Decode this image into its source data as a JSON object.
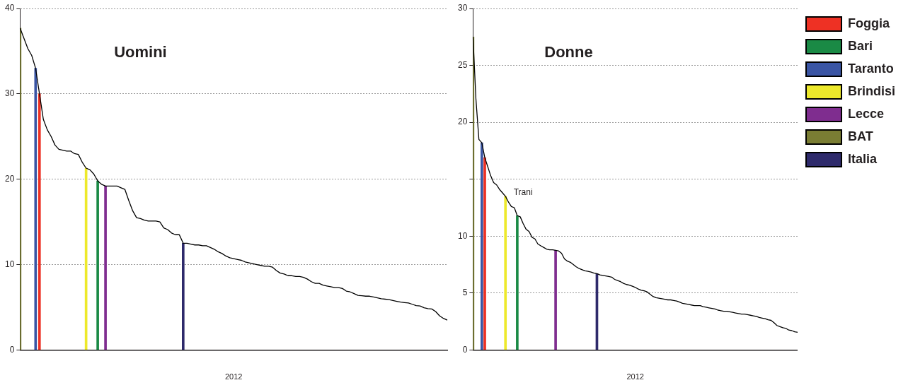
{
  "chart_data": [
    {
      "type": "line",
      "title": "Uomini",
      "xlabel": "2012",
      "marker": "none",
      "grid": "y",
      "ylim": [
        0,
        40
      ],
      "yticks": [
        0,
        10,
        20,
        30,
        40
      ],
      "categories": [
        null,
        null,
        null,
        null,
        null,
        null,
        null,
        null,
        null,
        null,
        null,
        null,
        null,
        null,
        null,
        null,
        null,
        null,
        null,
        null,
        null,
        null,
        null,
        null,
        null,
        null,
        null,
        null,
        null,
        null,
        null,
        null,
        null,
        null,
        null,
        null,
        null,
        null,
        null,
        null,
        null,
        null,
        null,
        null,
        null,
        null,
        null,
        null,
        null,
        null,
        null,
        null,
        null,
        null,
        null,
        null,
        null,
        null,
        null,
        null,
        null,
        null,
        null,
        null,
        null,
        null,
        null,
        null,
        null,
        null,
        null,
        null,
        null,
        null,
        null,
        null,
        null,
        null,
        null,
        null,
        null,
        null,
        null,
        null,
        null,
        null,
        null,
        null,
        null,
        null,
        null,
        null,
        null,
        null,
        null,
        null,
        null,
        null,
        null,
        null,
        null,
        null,
        null,
        null,
        null,
        null,
        null,
        null,
        null,
        null,
        null
      ],
      "series": [
        {
          "color": "#000000",
          "values": [
            37.7,
            36.5,
            35.3,
            34.5,
            33.0,
            30.0,
            27.0,
            25.8,
            25.0,
            24.0,
            23.5,
            23.4,
            23.3,
            23.3,
            23.0,
            22.9,
            22.0,
            21.3,
            21.1,
            20.6,
            19.8,
            19.4,
            19.2,
            19.2,
            19.2,
            19.2,
            19.0,
            18.8,
            17.5,
            16.3,
            15.5,
            15.4,
            15.2,
            15.1,
            15.1,
            15.1,
            15.0,
            14.3,
            14.1,
            13.7,
            13.5,
            13.5,
            12.5,
            12.5,
            12.4,
            12.3,
            12.3,
            12.2,
            12.2,
            12.0,
            11.8,
            11.5,
            11.3,
            11.0,
            10.8,
            10.7,
            10.6,
            10.5,
            10.3,
            10.2,
            10.1,
            10.0,
            9.9,
            9.8,
            9.8,
            9.7,
            9.3,
            9.0,
            8.9,
            8.7,
            8.7,
            8.6,
            8.6,
            8.5,
            8.3,
            8.0,
            7.8,
            7.8,
            7.6,
            7.5,
            7.4,
            7.3,
            7.3,
            7.2,
            6.9,
            6.8,
            6.6,
            6.4,
            6.35,
            6.3,
            6.3,
            6.2,
            6.1,
            6.0,
            5.95,
            5.9,
            5.8,
            5.7,
            5.6,
            5.55,
            5.5,
            5.35,
            5.2,
            5.15,
            4.95,
            4.85,
            4.8,
            4.5,
            4.0,
            3.7,
            3.5
          ]
        },
        {
          "type": "bar",
          "color": "#ee3124",
          "values": [
            null,
            null,
            null,
            null,
            null,
            30.0,
            null,
            null,
            null,
            null,
            null,
            null,
            null,
            null,
            null,
            null,
            null,
            null,
            null,
            null,
            null,
            null,
            null,
            null,
            null,
            null,
            null,
            null,
            null,
            null,
            null,
            null,
            null,
            null,
            null,
            null,
            null,
            null,
            null,
            null,
            null,
            null,
            null,
            null,
            null,
            null,
            null,
            null,
            null,
            null,
            null,
            null,
            null,
            null,
            null,
            null,
            null,
            null,
            null,
            null,
            null,
            null,
            null,
            null,
            null,
            null,
            null,
            null,
            null,
            null,
            null,
            null,
            null,
            null,
            null,
            null,
            null,
            null,
            null,
            null,
            null,
            null,
            null,
            null,
            null,
            null,
            null,
            null,
            null,
            null,
            null,
            null,
            null,
            null,
            null,
            null,
            null,
            null,
            null,
            null,
            null,
            null,
            null,
            null,
            null,
            null,
            null,
            null,
            null,
            null,
            null
          ]
        },
        {
          "type": "bar",
          "color": "#1a8a45",
          "values": [
            null,
            null,
            null,
            null,
            null,
            null,
            null,
            null,
            null,
            null,
            null,
            null,
            null,
            null,
            null,
            null,
            null,
            null,
            null,
            null,
            19.8,
            null,
            null,
            null,
            null,
            null,
            null,
            null,
            null,
            null,
            null,
            null,
            null,
            null,
            null,
            null,
            null,
            null,
            null,
            null,
            null,
            null,
            null,
            null,
            null,
            null,
            null,
            null,
            null,
            null,
            null,
            null,
            null,
            null,
            null,
            null,
            null,
            null,
            null,
            null,
            null,
            null,
            null,
            null,
            null,
            null,
            null,
            null,
            null,
            null,
            null,
            null,
            null,
            null,
            null,
            null,
            null,
            null,
            null,
            null,
            null,
            null,
            null,
            null,
            null,
            null,
            null,
            null,
            null,
            null,
            null,
            null,
            null,
            null,
            null,
            null,
            null,
            null,
            null,
            null,
            null,
            null,
            null,
            null,
            null,
            null,
            null,
            null,
            null,
            null,
            null
          ]
        },
        {
          "type": "bar",
          "color": "#3a55a4",
          "values": [
            null,
            null,
            null,
            null,
            33.0,
            null,
            null,
            null,
            null,
            null,
            null,
            null,
            null,
            null,
            null,
            null,
            null,
            null,
            null,
            null,
            null,
            null,
            null,
            null,
            null,
            null,
            null,
            null,
            null,
            null,
            null,
            null,
            null,
            null,
            null,
            null,
            null,
            null,
            null,
            null,
            null,
            null,
            null,
            null,
            null,
            null,
            null,
            null,
            null,
            null,
            null,
            null,
            null,
            null,
            null,
            null,
            null,
            null,
            null,
            null,
            null,
            null,
            null,
            null,
            null,
            null,
            null,
            null,
            null,
            null,
            null,
            null,
            null,
            null,
            null,
            null,
            null,
            null,
            null,
            null,
            null,
            null,
            null,
            null,
            null,
            null,
            null,
            null,
            null,
            null,
            null,
            null,
            null,
            null,
            null,
            null,
            null,
            null,
            null,
            null,
            null,
            null,
            null,
            null,
            null,
            null,
            null,
            null,
            null,
            null,
            null
          ]
        },
        {
          "type": "bar",
          "color": "#ede92b",
          "values": [
            null,
            null,
            null,
            null,
            null,
            null,
            null,
            null,
            null,
            null,
            null,
            null,
            null,
            null,
            null,
            null,
            null,
            21.3,
            null,
            null,
            null,
            null,
            null,
            null,
            null,
            null,
            null,
            null,
            null,
            null,
            null,
            null,
            null,
            null,
            null,
            null,
            null,
            null,
            null,
            null,
            null,
            null,
            null,
            null,
            null,
            null,
            null,
            null,
            null,
            null,
            null,
            null,
            null,
            null,
            null,
            null,
            null,
            null,
            null,
            null,
            null,
            null,
            null,
            null,
            null,
            null,
            null,
            null,
            null,
            null,
            null,
            null,
            null,
            null,
            null,
            null,
            null,
            null,
            null,
            null,
            null,
            null,
            null,
            null,
            null,
            null,
            null,
            null,
            null,
            null,
            null,
            null,
            null,
            null,
            null,
            null,
            null,
            null,
            null,
            null,
            null,
            null,
            null,
            null,
            null,
            null,
            null,
            null,
            null,
            null,
            null
          ]
        },
        {
          "type": "bar",
          "color": "#7f2d8f",
          "values": [
            null,
            null,
            null,
            null,
            null,
            null,
            null,
            null,
            null,
            null,
            null,
            null,
            null,
            null,
            null,
            null,
            null,
            null,
            null,
            null,
            null,
            null,
            19.2,
            null,
            null,
            null,
            null,
            null,
            null,
            null,
            null,
            null,
            null,
            null,
            null,
            null,
            null,
            null,
            null,
            null,
            null,
            null,
            null,
            null,
            null,
            null,
            null,
            null,
            null,
            null,
            null,
            null,
            null,
            null,
            null,
            null,
            null,
            null,
            null,
            null,
            null,
            null,
            null,
            null,
            null,
            null,
            null,
            null,
            null,
            null,
            null,
            null,
            null,
            null,
            null,
            null,
            null,
            null,
            null,
            null,
            null,
            null,
            null,
            null,
            null,
            null,
            null,
            null,
            null,
            null,
            null,
            null,
            null,
            null,
            null,
            null,
            null,
            null,
            null,
            null,
            null,
            null,
            null,
            null,
            null,
            null,
            null,
            null,
            null,
            null,
            null
          ]
        },
        {
          "type": "bar",
          "color": "#7a7d33",
          "values": [
            37.7,
            null,
            null,
            null,
            null,
            null,
            null,
            null,
            null,
            null,
            null,
            null,
            null,
            null,
            null,
            null,
            null,
            null,
            null,
            null,
            null,
            null,
            null,
            null,
            null,
            null,
            null,
            null,
            null,
            null,
            null,
            null,
            null,
            null,
            null,
            null,
            null,
            null,
            null,
            null,
            null,
            null,
            null,
            null,
            null,
            null,
            null,
            null,
            null,
            null,
            null,
            null,
            null,
            null,
            null,
            null,
            null,
            null,
            null,
            null,
            null,
            null,
            null,
            null,
            null,
            null,
            null,
            null,
            null,
            null,
            null,
            null,
            null,
            null,
            null,
            null,
            null,
            null,
            null,
            null,
            null,
            null,
            null,
            null,
            null,
            null,
            null,
            null,
            null,
            null,
            null,
            null,
            null,
            null,
            null,
            null,
            null,
            null,
            null,
            null,
            null,
            null,
            null,
            null,
            null,
            null,
            null,
            null,
            null,
            null,
            null
          ]
        },
        {
          "type": "bar",
          "color": "#2e2a6b",
          "values": [
            null,
            null,
            null,
            null,
            null,
            null,
            null,
            null,
            null,
            null,
            null,
            null,
            null,
            null,
            null,
            null,
            null,
            null,
            null,
            null,
            null,
            null,
            null,
            null,
            null,
            null,
            null,
            null,
            null,
            null,
            null,
            null,
            null,
            null,
            null,
            null,
            null,
            null,
            null,
            null,
            null,
            null,
            12.5,
            null,
            null,
            null,
            null,
            null,
            null,
            null,
            null,
            null,
            null,
            null,
            null,
            null,
            null,
            null,
            null,
            null,
            null,
            null,
            null,
            null,
            null,
            null,
            null,
            null,
            null,
            null,
            null,
            null,
            null,
            null,
            null,
            null,
            null,
            null,
            null,
            null,
            null,
            null,
            null,
            null,
            null,
            null,
            null,
            null,
            null,
            null,
            null,
            null,
            null,
            null,
            null,
            null,
            null,
            null,
            null,
            null,
            null,
            null,
            null,
            null,
            null,
            null,
            null,
            null,
            null,
            null,
            null
          ]
        }
      ]
    },
    {
      "type": "line",
      "title": "Donne",
      "xlabel": "2012",
      "marker": "none",
      "grid": "y",
      "legend": "top right",
      "ylim": [
        0,
        30
      ],
      "yticks": [
        0,
        5,
        10,
        {
          "value": 15,
          "label": null
        },
        20,
        25,
        30
      ],
      "annotations": [
        "Trani"
      ],
      "categories": [
        null,
        null,
        null,
        null,
        null,
        null,
        null,
        null,
        null,
        null,
        null,
        null,
        null,
        null,
        null,
        null,
        null,
        null,
        null,
        null,
        null,
        null,
        null,
        null,
        null,
        null,
        null,
        null,
        null,
        null,
        null,
        null,
        null,
        null,
        null,
        null,
        null,
        null,
        null,
        null,
        null,
        null,
        null,
        null,
        null,
        null,
        null,
        null,
        null,
        null,
        null,
        null,
        null,
        null,
        null,
        null,
        null,
        null,
        null,
        null,
        null,
        null,
        null,
        null,
        null,
        null,
        null,
        null,
        null,
        null,
        null,
        null,
        null,
        null,
        null,
        null,
        null,
        null,
        null,
        null,
        null,
        null,
        null,
        null,
        null,
        null,
        null,
        null,
        null,
        null,
        null,
        null,
        null,
        null,
        null,
        null,
        null,
        null,
        null,
        null,
        null,
        null,
        null,
        null,
        null,
        null,
        null,
        null,
        null,
        null,
        null
      ],
      "series": [
        {
          "color": "#000000",
          "values": [
            27.5,
            22.0,
            18.5,
            18.2,
            16.9,
            16.1,
            15.3,
            14.7,
            14.5,
            14.1,
            13.8,
            13.5,
            13.0,
            12.6,
            12.5,
            11.8,
            11.7,
            11.1,
            10.6,
            10.4,
            9.9,
            9.75,
            9.3,
            9.15,
            9.0,
            8.85,
            8.8,
            8.8,
            8.75,
            8.7,
            8.5,
            8.0,
            7.8,
            7.7,
            7.5,
            7.3,
            7.15,
            7.05,
            6.95,
            6.9,
            6.85,
            6.75,
            6.7,
            6.6,
            6.55,
            6.5,
            6.45,
            6.4,
            6.2,
            6.1,
            6.0,
            5.85,
            5.75,
            5.7,
            5.6,
            5.5,
            5.35,
            5.25,
            5.2,
            5.1,
            4.9,
            4.7,
            4.6,
            4.55,
            4.5,
            4.45,
            4.4,
            4.4,
            4.35,
            4.3,
            4.2,
            4.1,
            4.05,
            4.0,
            3.95,
            3.9,
            3.9,
            3.9,
            3.8,
            3.75,
            3.7,
            3.65,
            3.6,
            3.5,
            3.45,
            3.4,
            3.4,
            3.35,
            3.3,
            3.25,
            3.2,
            3.15,
            3.15,
            3.1,
            3.05,
            3.0,
            2.95,
            2.85,
            2.8,
            2.75,
            2.65,
            2.6,
            2.4,
            2.15,
            2.05,
            1.95,
            1.9,
            1.75,
            1.7,
            1.6,
            1.55
          ]
        },
        {
          "type": "bar",
          "name": "Foggia",
          "color": "#ee3124",
          "values": [
            null,
            null,
            null,
            null,
            16.9,
            null,
            null,
            null,
            null,
            null,
            null,
            null,
            null,
            null,
            null,
            null,
            null,
            null,
            null,
            null,
            null,
            null,
            null,
            null,
            null,
            null,
            null,
            null,
            null,
            null,
            null,
            null,
            null,
            null,
            null,
            null,
            null,
            null,
            null,
            null,
            null,
            null,
            null,
            null,
            null,
            null,
            null,
            null,
            null,
            null,
            null,
            null,
            null,
            null,
            null,
            null,
            null,
            null,
            null,
            null,
            null,
            null,
            null,
            null,
            null,
            null,
            null,
            null,
            null,
            null,
            null,
            null,
            null,
            null,
            null,
            null,
            null,
            null,
            null,
            null,
            null,
            null,
            null,
            null,
            null,
            null,
            null,
            null,
            null,
            null,
            null,
            null,
            null,
            null,
            null,
            null,
            null,
            null,
            null,
            null,
            null,
            null,
            null,
            null,
            null,
            null,
            null,
            null,
            null,
            null,
            null
          ]
        },
        {
          "type": "bar",
          "name": "Bari",
          "color": "#1a8a45",
          "values": [
            null,
            null,
            null,
            null,
            null,
            null,
            null,
            null,
            null,
            null,
            null,
            null,
            null,
            null,
            null,
            11.8,
            null,
            null,
            null,
            null,
            null,
            null,
            null,
            null,
            null,
            null,
            null,
            null,
            null,
            null,
            null,
            null,
            null,
            null,
            null,
            null,
            null,
            null,
            null,
            null,
            null,
            null,
            null,
            null,
            null,
            null,
            null,
            null,
            null,
            null,
            null,
            null,
            null,
            null,
            null,
            null,
            null,
            null,
            null,
            null,
            null,
            null,
            null,
            null,
            null,
            null,
            null,
            null,
            null,
            null,
            null,
            null,
            null,
            null,
            null,
            null,
            null,
            null,
            null,
            null,
            null,
            null,
            null,
            null,
            null,
            null,
            null,
            null,
            null,
            null,
            null,
            null,
            null,
            null,
            null,
            null,
            null,
            null,
            null,
            null,
            null,
            null,
            null,
            null,
            null,
            null,
            null,
            null,
            null,
            null,
            null
          ]
        },
        {
          "type": "bar",
          "name": "Taranto",
          "color": "#3a55a4",
          "values": [
            null,
            null,
            null,
            18.2,
            null,
            null,
            null,
            null,
            null,
            null,
            null,
            null,
            null,
            null,
            null,
            null,
            null,
            null,
            null,
            null,
            null,
            null,
            null,
            null,
            null,
            null,
            null,
            null,
            null,
            null,
            null,
            null,
            null,
            null,
            null,
            null,
            null,
            null,
            null,
            null,
            null,
            null,
            null,
            null,
            null,
            null,
            null,
            null,
            null,
            null,
            null,
            null,
            null,
            null,
            null,
            null,
            null,
            null,
            null,
            null,
            null,
            null,
            null,
            null,
            null,
            null,
            null,
            null,
            null,
            null,
            null,
            null,
            null,
            null,
            null,
            null,
            null,
            null,
            null,
            null,
            null,
            null,
            null,
            null,
            null,
            null,
            null,
            null,
            null,
            null,
            null,
            null,
            null,
            null,
            null,
            null,
            null,
            null,
            null,
            null,
            null,
            null,
            null,
            null,
            null,
            null,
            null,
            null,
            null,
            null,
            null
          ]
        },
        {
          "type": "bar",
          "name": "Brindisi",
          "color": "#ede92b",
          "values": [
            null,
            null,
            null,
            null,
            null,
            null,
            null,
            null,
            null,
            null,
            null,
            13.5,
            null,
            null,
            null,
            null,
            null,
            null,
            null,
            null,
            null,
            null,
            null,
            null,
            null,
            null,
            null,
            null,
            null,
            null,
            null,
            null,
            null,
            null,
            null,
            null,
            null,
            null,
            null,
            null,
            null,
            null,
            null,
            null,
            null,
            null,
            null,
            null,
            null,
            null,
            null,
            null,
            null,
            null,
            null,
            null,
            null,
            null,
            null,
            null,
            null,
            null,
            null,
            null,
            null,
            null,
            null,
            null,
            null,
            null,
            null,
            null,
            null,
            null,
            null,
            null,
            null,
            null,
            null,
            null,
            null,
            null,
            null,
            null,
            null,
            null,
            null,
            null,
            null,
            null,
            null,
            null,
            null,
            null,
            null,
            null,
            null,
            null,
            null,
            null,
            null,
            null,
            null,
            null,
            null,
            null,
            null,
            null,
            null,
            null,
            null
          ]
        },
        {
          "type": "bar",
          "name": "Lecce",
          "color": "#7f2d8f",
          "values": [
            null,
            null,
            null,
            null,
            null,
            null,
            null,
            null,
            null,
            null,
            null,
            null,
            null,
            null,
            null,
            null,
            null,
            null,
            null,
            null,
            null,
            null,
            null,
            null,
            null,
            null,
            null,
            null,
            8.75,
            null,
            null,
            null,
            null,
            null,
            null,
            null,
            null,
            null,
            null,
            null,
            null,
            null,
            null,
            null,
            null,
            null,
            null,
            null,
            null,
            null,
            null,
            null,
            null,
            null,
            null,
            null,
            null,
            null,
            null,
            null,
            null,
            null,
            null,
            null,
            null,
            null,
            null,
            null,
            null,
            null,
            null,
            null,
            null,
            null,
            null,
            null,
            null,
            null,
            null,
            null,
            null,
            null,
            null,
            null,
            null,
            null,
            null,
            null,
            null,
            null,
            null,
            null,
            null,
            null,
            null,
            null,
            null,
            null,
            null,
            null,
            null,
            null,
            null,
            null,
            null,
            null,
            null,
            null,
            null,
            null,
            null
          ]
        },
        {
          "type": "bar",
          "name": "BAT",
          "color": "#7a7d33",
          "values": [
            27.5,
            null,
            null,
            null,
            null,
            null,
            null,
            null,
            null,
            null,
            null,
            null,
            null,
            null,
            null,
            null,
            null,
            null,
            null,
            null,
            null,
            null,
            null,
            null,
            null,
            null,
            null,
            null,
            null,
            null,
            null,
            null,
            null,
            null,
            null,
            null,
            null,
            null,
            null,
            null,
            null,
            null,
            null,
            null,
            null,
            null,
            null,
            null,
            null,
            null,
            null,
            null,
            null,
            null,
            null,
            null,
            null,
            null,
            null,
            null,
            null,
            null,
            null,
            null,
            null,
            null,
            null,
            null,
            null,
            null,
            null,
            null,
            null,
            null,
            null,
            null,
            null,
            null,
            null,
            null,
            null,
            null,
            null,
            null,
            null,
            null,
            null,
            null,
            null,
            null,
            null,
            null,
            null,
            null,
            null,
            null,
            null,
            null,
            null,
            null,
            null,
            null,
            null,
            null,
            null,
            null,
            null,
            null,
            null,
            null,
            null
          ]
        },
        {
          "type": "bar",
          "name": "Italia",
          "color": "#2e2a6b",
          "values": [
            null,
            null,
            null,
            null,
            null,
            null,
            null,
            null,
            null,
            null,
            null,
            null,
            null,
            null,
            null,
            null,
            null,
            null,
            null,
            null,
            null,
            null,
            null,
            null,
            null,
            null,
            null,
            null,
            null,
            null,
            null,
            null,
            null,
            null,
            null,
            null,
            null,
            null,
            null,
            null,
            null,
            null,
            6.7,
            null,
            null,
            null,
            null,
            null,
            null,
            null,
            null,
            null,
            null,
            null,
            null,
            null,
            null,
            null,
            null,
            null,
            null,
            null,
            null,
            null,
            null,
            null,
            null,
            null,
            null,
            null,
            null,
            null,
            null,
            null,
            null,
            null,
            null,
            null,
            null,
            null,
            null,
            null,
            null,
            null,
            null,
            null,
            null,
            null,
            null,
            null,
            null,
            null,
            null,
            null,
            null,
            null,
            null,
            null,
            null,
            null,
            null,
            null,
            null,
            null,
            null,
            null,
            null,
            null,
            null,
            null,
            null
          ]
        }
      ]
    }
  ]
}
